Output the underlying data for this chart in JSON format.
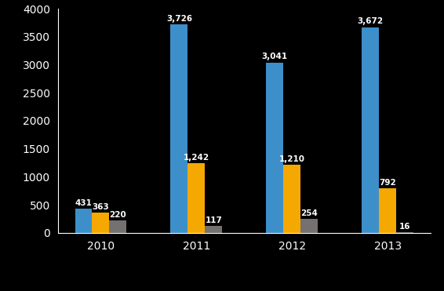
{
  "years": [
    "2010",
    "2011",
    "2012",
    "2013"
  ],
  "disposal_receipts": [
    431,
    3726,
    3041,
    3672
  ],
  "non_disposal_income": [
    363,
    1242,
    1210,
    792
  ],
  "other_income": [
    220,
    117,
    254,
    16
  ],
  "bar_colors": {
    "disposal": "#3d8fc9",
    "non_disposal": "#f5a800",
    "other": "#767171"
  },
  "background_color": "#000000",
  "text_color": "#ffffff",
  "ylim": [
    0,
    4000
  ],
  "yticks": [
    0,
    500,
    1000,
    1500,
    2000,
    2500,
    3000,
    3500,
    4000
  ],
  "bar_width": 0.18,
  "value_fontsize": 7.5,
  "axis_fontsize": 10,
  "legend_fontsize": 9
}
